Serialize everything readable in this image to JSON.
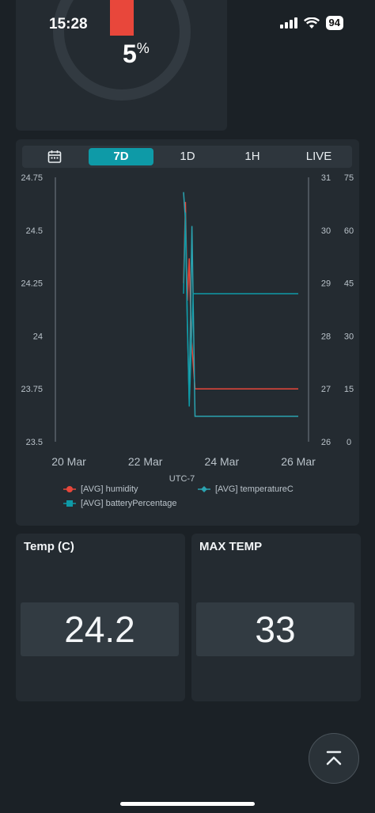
{
  "status_bar": {
    "time": "15:28",
    "battery": "94"
  },
  "gauge": {
    "value": "5",
    "unit": "%",
    "fill_fraction": 0.05,
    "fill_color": "#e8473b"
  },
  "range_selector": {
    "options": [
      "7D",
      "1D",
      "1H",
      "LIVE"
    ],
    "selected": "7D"
  },
  "chart_data": {
    "type": "line",
    "timezone_label": "UTC-7",
    "x_ticks": [
      "20 Mar",
      "22 Mar",
      "24 Mar",
      "26 Mar"
    ],
    "y_left_ticks": [
      "24.75",
      "24.5",
      "24.25",
      "24",
      "23.75",
      "23.5"
    ],
    "y_right1_ticks": [
      "31",
      "30",
      "29",
      "28",
      "27",
      "26"
    ],
    "y_right2_ticks": [
      "75",
      "60",
      "45",
      "30",
      "15",
      "0"
    ],
    "y_left_range": [
      23.5,
      24.75
    ],
    "y_right1_range": [
      26,
      31
    ],
    "y_right2_range": [
      0,
      75
    ],
    "series": [
      {
        "name": "[AVG] humidity",
        "axis": "right2",
        "color": "#e8473b",
        "points": [
          [
            23.0,
            45
          ],
          [
            23.05,
            68
          ],
          [
            23.1,
            40
          ],
          [
            23.15,
            52
          ],
          [
            23.2,
            30
          ],
          [
            23.3,
            15
          ],
          [
            24.0,
            15
          ],
          [
            26.0,
            15
          ]
        ]
      },
      {
        "name": "[AVG] temperatureC",
        "axis": "left",
        "color": "#2aa3b0",
        "points": [
          [
            23.0,
            24.68
          ],
          [
            23.05,
            24.55
          ],
          [
            23.1,
            24.05
          ],
          [
            23.15,
            23.7
          ],
          [
            23.22,
            24.52
          ],
          [
            23.3,
            23.62
          ],
          [
            24.0,
            23.62
          ],
          [
            26.0,
            23.62
          ]
        ]
      },
      {
        "name": "[AVG] batteryPercentage",
        "axis": "right2",
        "color": "#0e9aa7",
        "points": [
          [
            23.0,
            42
          ],
          [
            23.05,
            65
          ],
          [
            23.1,
            35
          ],
          [
            23.15,
            10
          ],
          [
            23.25,
            42
          ],
          [
            24.0,
            42
          ],
          [
            26.0,
            42
          ]
        ]
      }
    ]
  },
  "temp_card": {
    "title": "Temp (C)",
    "value": "24.2"
  },
  "max_temp_card": {
    "title": "MAX TEMP",
    "value": "33"
  },
  "colors": {
    "accent": "#0e9aa7",
    "background": "#1b2126",
    "card": "#242b31"
  }
}
